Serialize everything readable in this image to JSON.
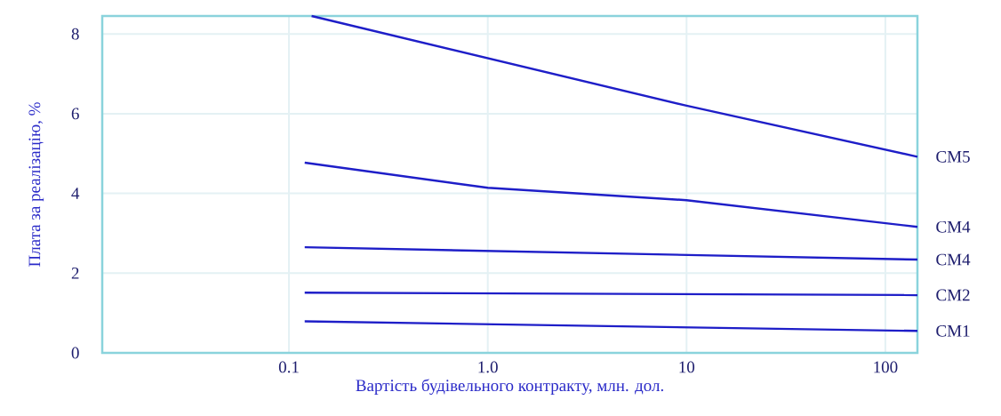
{
  "chart_data": {
    "type": "line",
    "xlabel": "Вартість будівельного контракту, млн. дол.",
    "ylabel": "Плата за реалізацію, %",
    "log": "x",
    "grid": true,
    "marker": "none",
    "line_style": "solid",
    "xlim": [
      0.0115,
      145
    ],
    "xticks": [
      0.1,
      {
        "value": 1,
        "label": "1.0"
      },
      10,
      100
    ],
    "ylim": [
      0,
      8.45
    ],
    "yticks": [
      0,
      2,
      4,
      6,
      8
    ],
    "series": [
      {
        "name": "CM5",
        "color": "#1e1ec8",
        "x": [
          0.13,
          10,
          145
        ],
        "values": [
          8.45,
          6.2,
          4.92
        ]
      },
      {
        "name": "CM4",
        "color": "#1e1ec8",
        "x": [
          0.12,
          1,
          10,
          145
        ],
        "values": [
          4.77,
          4.14,
          3.83,
          3.16
        ]
      },
      {
        "name": "CM4",
        "color": "#1e1ec8",
        "x": [
          0.12,
          145
        ],
        "values": [
          2.65,
          2.34
        ]
      },
      {
        "name": "CM2",
        "color": "#1e1ec8",
        "x": [
          0.12,
          145
        ],
        "values": [
          1.51,
          1.45
        ]
      },
      {
        "name": "CM1",
        "color": "#1e1ec8",
        "x": [
          0.12,
          145
        ],
        "values": [
          0.79,
          0.55
        ]
      }
    ]
  }
}
